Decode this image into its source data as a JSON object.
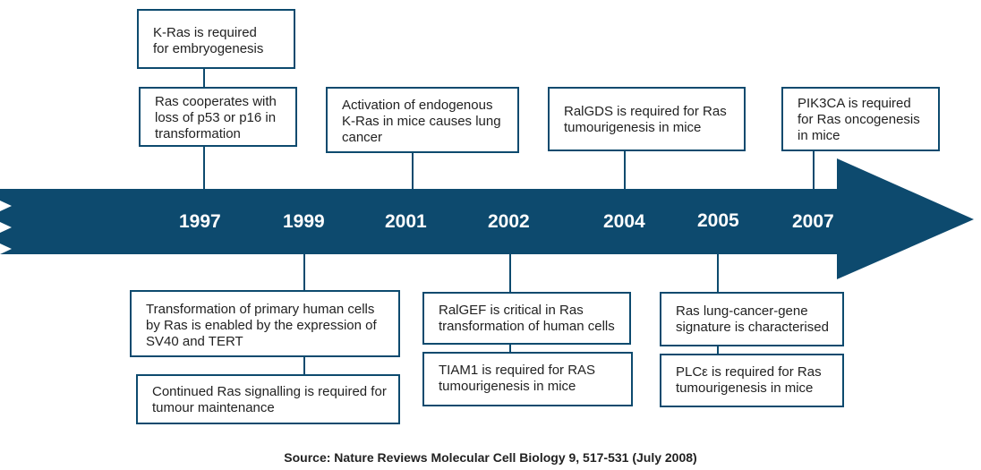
{
  "timeline": {
    "years": [
      "1997",
      "1999",
      "2001",
      "2002",
      "2004",
      "2005",
      "2007"
    ],
    "colors": {
      "arrow": "#0d4a6e",
      "box_border": "#0d4a6e",
      "year_text": "#ffffff"
    }
  },
  "events": {
    "kras_embryogenesis": "K-Ras is required\nfor embryogenesis",
    "ras_p53_p16": "Ras cooperates with\nloss of p53 or p16 in\ntransformation",
    "endogenous_kras": "Activation of endogenous\nK-Ras in mice causes lung\ncancer",
    "ralgds": "RalGDS is required for Ras\ntumourigenesis in mice",
    "pik3ca": "PIK3CA is required\nfor Ras oncogenesis\nin mice",
    "primary_human_cells": "Transformation of primary human cells\nby Ras is enabled by the expression of\nSV40 and TERT",
    "continued_signalling": "Continued Ras signalling is required for\ntumour maintenance",
    "ralgef": "RalGEF is critical in Ras\ntransformation of human cells",
    "tiam1": "TIAM1 is required for RAS\ntumourigenesis in mice",
    "lung_signature": "Ras lung-cancer-gene\nsignature is characterised",
    "plce": "PLCε is required for Ras\ntumourigenesis in mice"
  },
  "source": "Source: Nature Reviews Molecular Cell Biology 9, 517-531 (July 2008)"
}
